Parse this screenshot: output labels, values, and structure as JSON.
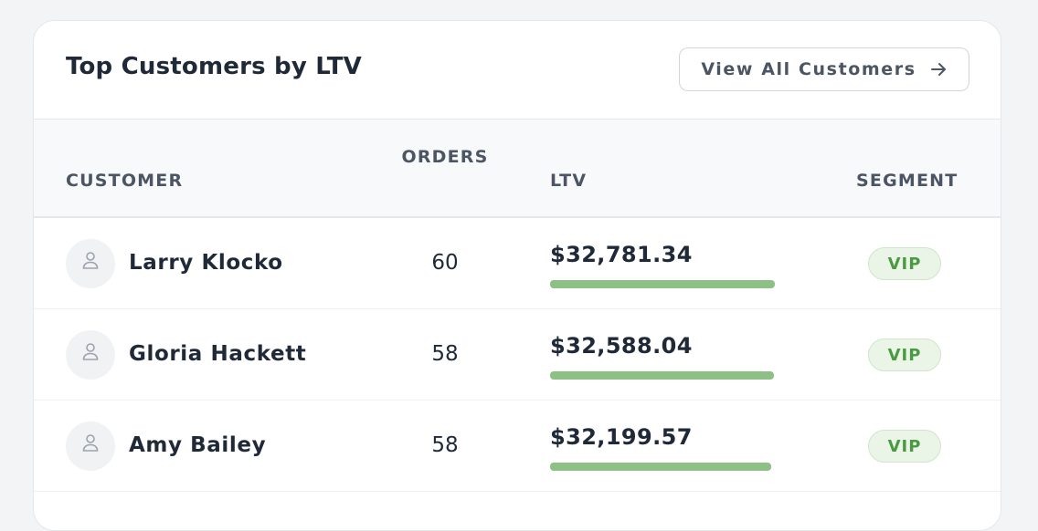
{
  "card": {
    "title": "Top Customers by LTV",
    "view_all_label": "View All Customers"
  },
  "table": {
    "headers": {
      "customer": "CUSTOMER",
      "orders": "ORDERS",
      "ltv": "LTV",
      "segment": "SEGMENT"
    },
    "rows": [
      {
        "name": "Larry Klocko",
        "orders": "60",
        "ltv": "$32,781.34",
        "ltv_bar_pct": 100,
        "segment": "VIP"
      },
      {
        "name": "Gloria Hackett",
        "orders": "58",
        "ltv": "$32,588.04",
        "ltv_bar_pct": 99.4,
        "segment": "VIP"
      },
      {
        "name": "Amy Bailey",
        "orders": "58",
        "ltv": "$32,199.57",
        "ltv_bar_pct": 98.2,
        "segment": "VIP"
      }
    ]
  },
  "icons": {
    "header_button": "arrow-right-icon",
    "avatar": "user-icon"
  },
  "colors": {
    "ltv_bar": "#8cc084",
    "segment_badge_text": "#4a9a42",
    "segment_badge_bg": "#eaf5e7"
  }
}
